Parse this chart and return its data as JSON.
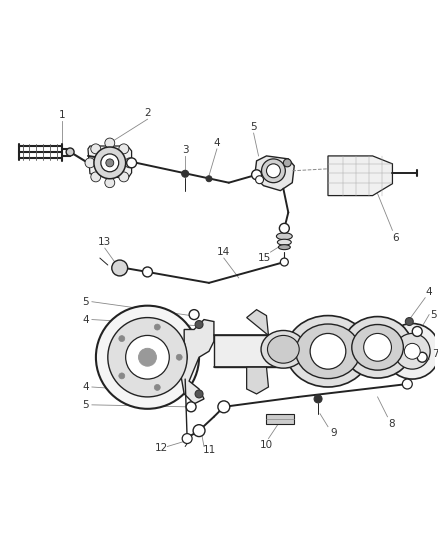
{
  "bg_color": "#ffffff",
  "line_color": "#000000",
  "label_color": "#333333",
  "figsize": [
    4.38,
    5.33
  ],
  "dpi": 100
}
